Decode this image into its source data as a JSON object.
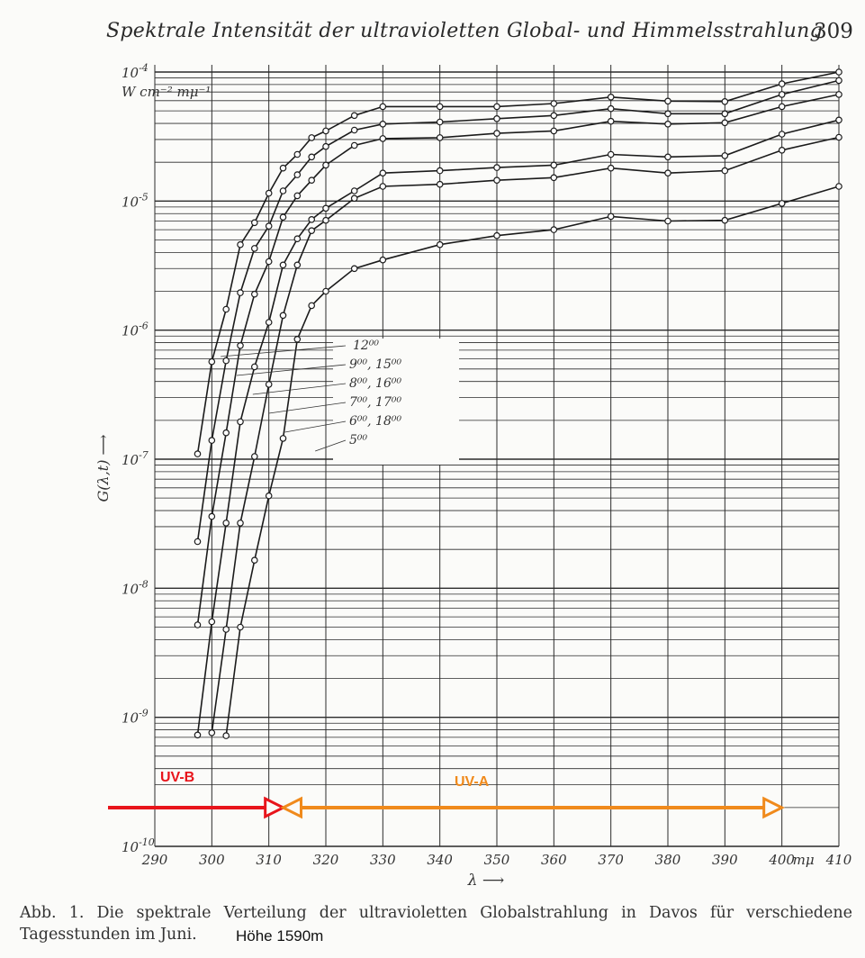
{
  "header": {
    "running_title": "Spektrale Intensität der ultravioletten Global- und Himmelsstrahlung",
    "page_number": "309"
  },
  "chart_data": {
    "type": "line",
    "yscale": "log",
    "ylim": [
      1e-10,
      0.0001
    ],
    "xlim": [
      290,
      410
    ],
    "grid": true,
    "ylabel": "G(λ,t) ⟶",
    "xlabel": "λ ⟶",
    "y_unit": "W cm⁻² mμ⁻¹",
    "x_unit": "mμ",
    "x_ticks": [
      "290",
      "300",
      "310",
      "320",
      "330",
      "340",
      "350",
      "360",
      "370",
      "380",
      "390",
      "400",
      "410"
    ],
    "y_ticks": [
      {
        "base": "10",
        "exp": "-10",
        "value": 1e-10
      },
      {
        "base": "10",
        "exp": "-9",
        "value": 1e-09
      },
      {
        "base": "10",
        "exp": "-8",
        "value": 1e-08
      },
      {
        "base": "10",
        "exp": "-7",
        "value": 1e-07
      },
      {
        "base": "10",
        "exp": "-6",
        "value": 1e-06
      },
      {
        "base": "10",
        "exp": "-5",
        "value": 1e-05
      },
      {
        "base": "10",
        "exp": "-4",
        "value": 0.0001
      }
    ],
    "series": [
      {
        "name": "12⁰⁰",
        "points": [
          [
            297.5,
            1.1e-07
          ],
          [
            300,
            5.7e-07
          ],
          [
            302.5,
            1.45e-06
          ],
          [
            305,
            4.6e-06
          ],
          [
            307.5,
            6.8e-06
          ],
          [
            310,
            1.15e-05
          ],
          [
            312.5,
            1.8e-05
          ],
          [
            315,
            2.3e-05
          ],
          [
            317.5,
            3.1e-05
          ],
          [
            320,
            3.5e-05
          ],
          [
            325,
            4.6e-05
          ],
          [
            330,
            5.4e-05
          ],
          [
            340,
            5.4e-05
          ],
          [
            350,
            5.4e-05
          ],
          [
            360,
            5.7e-05
          ],
          [
            370,
            6.4e-05
          ],
          [
            380,
            5.95e-05
          ],
          [
            390,
            5.9e-05
          ],
          [
            400,
            8.1e-05
          ],
          [
            410,
            0.0001
          ]
        ]
      },
      {
        "name": "9⁰⁰, 15⁰⁰",
        "points": [
          [
            297.5,
            2.3e-08
          ],
          [
            300,
            1.4e-07
          ],
          [
            302.5,
            5.8e-07
          ],
          [
            305,
            1.95e-06
          ],
          [
            307.5,
            4.3e-06
          ],
          [
            310,
            6.4e-06
          ],
          [
            312.5,
            1.2e-05
          ],
          [
            315,
            1.6e-05
          ],
          [
            317.5,
            2.2e-05
          ],
          [
            320,
            2.65e-05
          ],
          [
            325,
            3.55e-05
          ],
          [
            330,
            3.95e-05
          ],
          [
            340,
            4.1e-05
          ],
          [
            350,
            4.35e-05
          ],
          [
            360,
            4.6e-05
          ],
          [
            370,
            5.2e-05
          ],
          [
            380,
            4.75e-05
          ],
          [
            390,
            4.75e-05
          ],
          [
            400,
            6.7e-05
          ],
          [
            410,
            8.6e-05
          ]
        ]
      },
      {
        "name": "8⁰⁰, 16⁰⁰",
        "points": [
          [
            297.5,
            5.2e-09
          ],
          [
            300,
            3.6e-08
          ],
          [
            302.5,
            1.6e-07
          ],
          [
            305,
            7.6e-07
          ],
          [
            307.5,
            1.9e-06
          ],
          [
            310,
            3.4e-06
          ],
          [
            312.5,
            7.5e-06
          ],
          [
            315,
            1.1e-05
          ],
          [
            317.5,
            1.45e-05
          ],
          [
            320,
            1.9e-05
          ],
          [
            325,
            2.7e-05
          ],
          [
            330,
            3.05e-05
          ],
          [
            340,
            3.1e-05
          ],
          [
            350,
            3.35e-05
          ],
          [
            360,
            3.5e-05
          ],
          [
            370,
            4.15e-05
          ],
          [
            380,
            3.95e-05
          ],
          [
            390,
            4.05e-05
          ],
          [
            400,
            5.4e-05
          ],
          [
            410,
            6.7e-05
          ]
        ]
      },
      {
        "name": "7⁰⁰, 17⁰⁰",
        "points": [
          [
            297.5,
            7.3e-10
          ],
          [
            300,
            5.5e-09
          ],
          [
            302.5,
            3.2e-08
          ],
          [
            305,
            1.95e-07
          ],
          [
            307.5,
            5.2e-07
          ],
          [
            310,
            1.15e-06
          ],
          [
            312.5,
            3.2e-06
          ],
          [
            315,
            5.1e-06
          ],
          [
            317.5,
            7.2e-06
          ],
          [
            320,
            8.8e-06
          ],
          [
            325,
            1.2e-05
          ],
          [
            330,
            1.65e-05
          ],
          [
            340,
            1.72e-05
          ],
          [
            350,
            1.82e-05
          ],
          [
            360,
            1.9e-05
          ],
          [
            370,
            2.3e-05
          ],
          [
            380,
            2.2e-05
          ],
          [
            390,
            2.25e-05
          ],
          [
            400,
            3.3e-05
          ],
          [
            410,
            4.25e-05
          ]
        ]
      },
      {
        "name": "6⁰⁰, 18⁰⁰",
        "points": [
          [
            300,
            7.6e-10
          ],
          [
            302.5,
            4.8e-09
          ],
          [
            305,
            3.2e-08
          ],
          [
            307.5,
            1.05e-07
          ],
          [
            310,
            3.8e-07
          ],
          [
            312.5,
            1.3e-06
          ],
          [
            315,
            3.2e-06
          ],
          [
            317.5,
            5.9e-06
          ],
          [
            320,
            7.1e-06
          ],
          [
            325,
            1.05e-05
          ],
          [
            330,
            1.3e-05
          ],
          [
            340,
            1.35e-05
          ],
          [
            350,
            1.45e-05
          ],
          [
            360,
            1.52e-05
          ],
          [
            370,
            1.8e-05
          ],
          [
            380,
            1.65e-05
          ],
          [
            390,
            1.72e-05
          ],
          [
            400,
            2.48e-05
          ],
          [
            410,
            3.12e-05
          ]
        ]
      },
      {
        "name": "5⁰⁰",
        "points": [
          [
            302.5,
            7.2e-10
          ],
          [
            305,
            5e-09
          ],
          [
            307.5,
            1.65e-08
          ],
          [
            310,
            5.2e-08
          ],
          [
            312.5,
            1.45e-07
          ],
          [
            315,
            8.5e-07
          ],
          [
            317.5,
            1.55e-06
          ],
          [
            320,
            2e-06
          ],
          [
            325,
            3e-06
          ],
          [
            330,
            3.5e-06
          ],
          [
            340,
            4.6e-06
          ],
          [
            350,
            5.4e-06
          ],
          [
            360,
            6e-06
          ],
          [
            370,
            7.6e-06
          ],
          [
            380,
            7e-06
          ],
          [
            390,
            7.1e-06
          ],
          [
            400,
            9.6e-06
          ],
          [
            410,
            1.3e-05
          ]
        ]
      }
    ],
    "label_order": [
      "12⁰⁰",
      "9⁰⁰, 15⁰⁰",
      "8⁰⁰, 16⁰⁰",
      "7⁰⁰, 17⁰⁰",
      "6⁰⁰, 18⁰⁰",
      "5⁰⁰"
    ],
    "annotations": {
      "uvb": {
        "label": "UV-B",
        "x_from": 290,
        "x_to": 310,
        "color": "#e8141b"
      },
      "uva": {
        "label": "UV-A",
        "x_from": 312.5,
        "x_to": 400,
        "color": "#f08a1c"
      }
    }
  },
  "caption": {
    "text": "Abb. 1. Die spektrale Verteilung der ultravioletten Globalstrahlung in Davos für verschiedene Tagesstunden im Juni.",
    "extra": "Höhe 1590m"
  }
}
